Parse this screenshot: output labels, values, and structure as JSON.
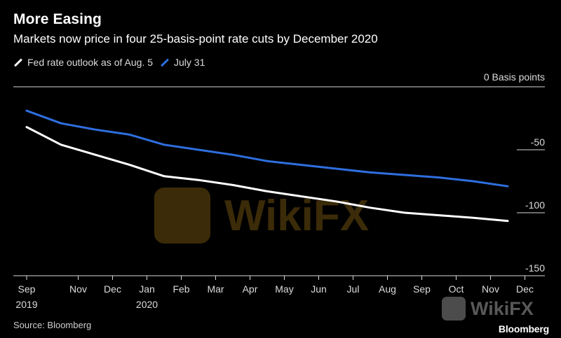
{
  "header": {
    "title": "More Easing",
    "subtitle": "Markets now price in four 25-basis-point rate cuts by December 2020"
  },
  "legend": {
    "items": [
      {
        "label": "Fed rate outlook as of Aug. 5",
        "color": "#ffffff"
      },
      {
        "label": "July 31",
        "color": "#2f6fe0"
      }
    ]
  },
  "footer": {
    "source": "Source: Bloomberg",
    "brand": "Bloomberg"
  },
  "watermark": {
    "text": "WikiFX"
  },
  "chart_data": {
    "type": "line",
    "title": "More Easing",
    "subtitle": "Markets now price in four 25-basis-point rate cuts by December 2020",
    "ylabel": "Basis points",
    "ylim": [
      -150,
      0
    ],
    "yticks": [
      0,
      -50,
      -100,
      -150
    ],
    "ytick_labels": [
      "0",
      "-50",
      "-100",
      "-150"
    ],
    "grid": "horizontal at tick values, right-side labels",
    "legend_position": "top-left",
    "x": [
      "Sep 2019",
      "Oct 2019",
      "Nov 2019",
      "Dec 2019",
      "Jan 2020",
      "Feb 2020",
      "Mar 2020",
      "Apr 2020",
      "May 2020",
      "Jun 2020",
      "Jul 2020",
      "Aug 2020",
      "Sep 2020",
      "Oct 2020",
      "Nov 2020",
      "Dec 2020"
    ],
    "x_tick_labels": [
      {
        "label": "Sep",
        "sub": "2019",
        "index": 0
      },
      {
        "label": "Nov",
        "sub": "",
        "index": 1.5
      },
      {
        "label": "Dec",
        "sub": "",
        "index": 2.5
      },
      {
        "label": "Jan",
        "sub": "2020",
        "index": 3.5
      },
      {
        "label": "Feb",
        "sub": "",
        "index": 4.5
      },
      {
        "label": "Mar",
        "sub": "",
        "index": 5.5
      },
      {
        "label": "Apr",
        "sub": "",
        "index": 6.5
      },
      {
        "label": "May",
        "sub": "",
        "index": 7.5
      },
      {
        "label": "Jun",
        "sub": "",
        "index": 8.5
      },
      {
        "label": "Jul",
        "sub": "",
        "index": 9.5
      },
      {
        "label": "Aug",
        "sub": "",
        "index": 10.5
      },
      {
        "label": "Sep",
        "sub": "",
        "index": 11.5
      },
      {
        "label": "Oct",
        "sub": "",
        "index": 12.5
      },
      {
        "label": "Nov",
        "sub": "",
        "index": 13.5
      },
      {
        "label": "Dec",
        "sub": "",
        "index": 14.5
      }
    ],
    "series": [
      {
        "name": "Fed rate outlook as of Aug. 5",
        "color": "#ffffff",
        "points": [
          [
            0,
            -32
          ],
          [
            1,
            -46
          ],
          [
            2,
            -54
          ],
          [
            3,
            -62
          ],
          [
            4,
            -71
          ],
          [
            5,
            -74
          ],
          [
            6,
            -78
          ],
          [
            7,
            -83
          ],
          [
            8,
            -87
          ],
          [
            9,
            -91
          ],
          [
            10,
            -96
          ],
          [
            11,
            -100
          ],
          [
            12,
            -102
          ],
          [
            13,
            -104
          ],
          [
            14,
            -106.5
          ]
        ]
      },
      {
        "name": "July 31",
        "color": "#2f6fe0",
        "points": [
          [
            0,
            -19
          ],
          [
            1,
            -29
          ],
          [
            2,
            -34
          ],
          [
            3,
            -38
          ],
          [
            4,
            -46
          ],
          [
            5,
            -50
          ],
          [
            6,
            -54
          ],
          [
            7,
            -59
          ],
          [
            8,
            -62
          ],
          [
            9,
            -65
          ],
          [
            10,
            -68
          ],
          [
            11,
            -70
          ],
          [
            12,
            -72
          ],
          [
            13,
            -75
          ],
          [
            14,
            -79
          ]
        ]
      }
    ]
  }
}
